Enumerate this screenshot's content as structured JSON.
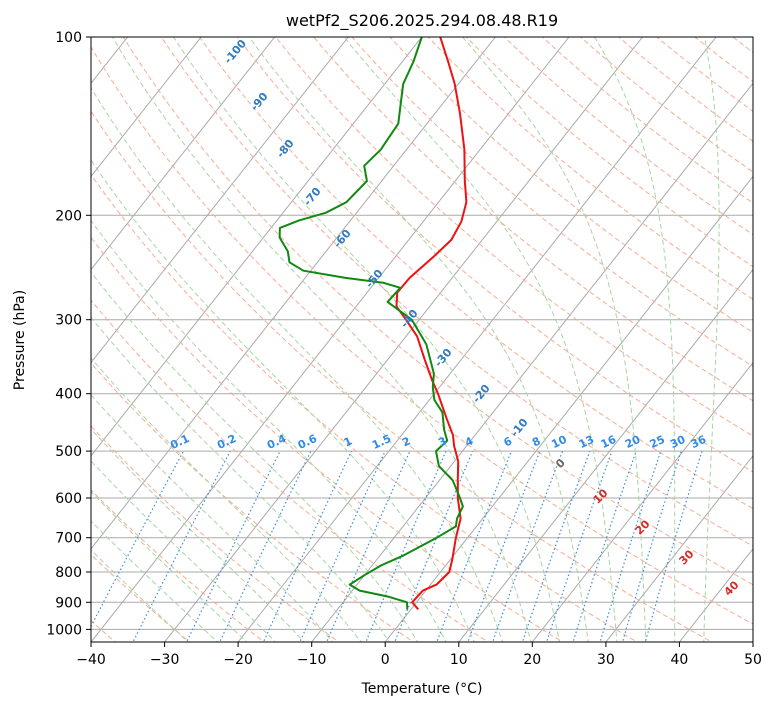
{
  "chart_data": {
    "type": "skew-t",
    "title": "wetPf2_S206.2025.294.08.48.R19",
    "xlabel": "Temperature (°C)",
    "ylabel": "Pressure (hPa)",
    "xlim": [
      -40,
      50
    ],
    "ylim": [
      1050,
      100
    ],
    "x_ticks": [
      -40,
      -30,
      -20,
      -10,
      0,
      10,
      20,
      30,
      40,
      50
    ],
    "x_tick_labels": [
      "−40",
      "−30",
      "−20",
      "−10",
      "0",
      "10",
      "20",
      "30",
      "40",
      "50"
    ],
    "y_ticks": [
      100,
      200,
      300,
      400,
      500,
      600,
      700,
      800,
      900,
      1000
    ],
    "y_tick_labels": [
      "100",
      "200",
      "300",
      "400",
      "500",
      "600",
      "700",
      "800",
      "900",
      "1000"
    ],
    "colors": {
      "temperature": "#ee1111",
      "dewpoint": "#118811",
      "isotherm": "#aaaaaa",
      "dry_adiabat": "#f5ad93",
      "moist_adiabat": "#a9d4a6",
      "mixing_ratio": "#3a8fdc",
      "label_blue": "#2e7bc0",
      "label_red": "#d62a2a",
      "label_gray": "#666666",
      "label_mix": "#2f8be6"
    },
    "series": [
      {
        "name": "Temperature",
        "points": [
          {
            "p": 925,
            "t": 1.0
          },
          {
            "p": 900,
            "t": -0.6
          },
          {
            "p": 860,
            "t": -0.4
          },
          {
            "p": 840,
            "t": 0.8
          },
          {
            "p": 800,
            "t": 1.2
          },
          {
            "p": 760,
            "t": 0.2
          },
          {
            "p": 700,
            "t": -1.6
          },
          {
            "p": 650,
            "t": -3.0
          },
          {
            "p": 600,
            "t": -5.6
          },
          {
            "p": 560,
            "t": -7.5
          },
          {
            "p": 520,
            "t": -9.5
          },
          {
            "p": 490,
            "t": -11.7
          },
          {
            "p": 470,
            "t": -13.0
          },
          {
            "p": 440,
            "t": -15.7
          },
          {
            "p": 400,
            "t": -19.5
          },
          {
            "p": 380,
            "t": -21.7
          },
          {
            "p": 350,
            "t": -25.0
          },
          {
            "p": 320,
            "t": -28.5
          },
          {
            "p": 300,
            "t": -31.8
          },
          {
            "p": 285,
            "t": -34.5
          },
          {
            "p": 270,
            "t": -35.9
          },
          {
            "p": 255,
            "t": -35.8
          },
          {
            "p": 235,
            "t": -34.8
          },
          {
            "p": 220,
            "t": -34.2
          },
          {
            "p": 205,
            "t": -34.8
          },
          {
            "p": 190,
            "t": -36.2
          },
          {
            "p": 175,
            "t": -38.7
          },
          {
            "p": 155,
            "t": -42.1
          },
          {
            "p": 135,
            "t": -46.5
          },
          {
            "p": 120,
            "t": -50.5
          },
          {
            "p": 110,
            "t": -53.8
          },
          {
            "p": 100,
            "t": -57.5
          }
        ]
      },
      {
        "name": "Dewpoint",
        "points": [
          {
            "p": 925,
            "t": -0.5
          },
          {
            "p": 900,
            "t": -1.3
          },
          {
            "p": 880,
            "t": -4.5
          },
          {
            "p": 860,
            "t": -9.0
          },
          {
            "p": 840,
            "t": -11.0
          },
          {
            "p": 810,
            "t": -10.0
          },
          {
            "p": 780,
            "t": -8.8
          },
          {
            "p": 750,
            "t": -6.8
          },
          {
            "p": 700,
            "t": -4.2
          },
          {
            "p": 670,
            "t": -2.8
          },
          {
            "p": 650,
            "t": -3.5
          },
          {
            "p": 620,
            "t": -4.0
          },
          {
            "p": 600,
            "t": -5.3
          },
          {
            "p": 560,
            "t": -8.2
          },
          {
            "p": 530,
            "t": -11.6
          },
          {
            "p": 500,
            "t": -13.6
          },
          {
            "p": 480,
            "t": -13.2
          },
          {
            "p": 460,
            "t": -14.8
          },
          {
            "p": 430,
            "t": -16.9
          },
          {
            "p": 410,
            "t": -19.3
          },
          {
            "p": 390,
            "t": -20.9
          },
          {
            "p": 370,
            "t": -22.2
          },
          {
            "p": 330,
            "t": -26.4
          },
          {
            "p": 300,
            "t": -31.0
          },
          {
            "p": 280,
            "t": -36.2
          },
          {
            "p": 265,
            "t": -36.0
          },
          {
            "p": 260,
            "t": -38.8
          },
          {
            "p": 255,
            "t": -44.5
          },
          {
            "p": 248,
            "t": -51.0
          },
          {
            "p": 240,
            "t": -53.8
          },
          {
            "p": 230,
            "t": -55.2
          },
          {
            "p": 218,
            "t": -57.8
          },
          {
            "p": 210,
            "t": -58.8
          },
          {
            "p": 204,
            "t": -57.0
          },
          {
            "p": 198,
            "t": -54.2
          },
          {
            "p": 190,
            "t": -52.5
          },
          {
            "p": 175,
            "t": -52.0
          },
          {
            "p": 165,
            "t": -54.0
          },
          {
            "p": 155,
            "t": -53.5
          },
          {
            "p": 140,
            "t": -53.9
          },
          {
            "p": 128,
            "t": -56.0
          },
          {
            "p": 120,
            "t": -57.5
          },
          {
            "p": 110,
            "t": -58.5
          },
          {
            "p": 100,
            "t": -60.0
          }
        ]
      }
    ],
    "dry_adiabat_labels": [
      "-100",
      "-90",
      "-80",
      "-70",
      "-60",
      "-50",
      "-40",
      "-30",
      "-20",
      "-10"
    ],
    "moist_adiabat_labels": [
      "0",
      "10",
      "20",
      "30",
      "40"
    ],
    "mixing_ratio_labels": [
      "0.1",
      "0.2",
      "0.4",
      "0.6",
      "1",
      "1.5",
      "2",
      "3",
      "4",
      "6",
      "8",
      "10",
      "13",
      "16",
      "20",
      "25",
      "30",
      "36"
    ]
  }
}
